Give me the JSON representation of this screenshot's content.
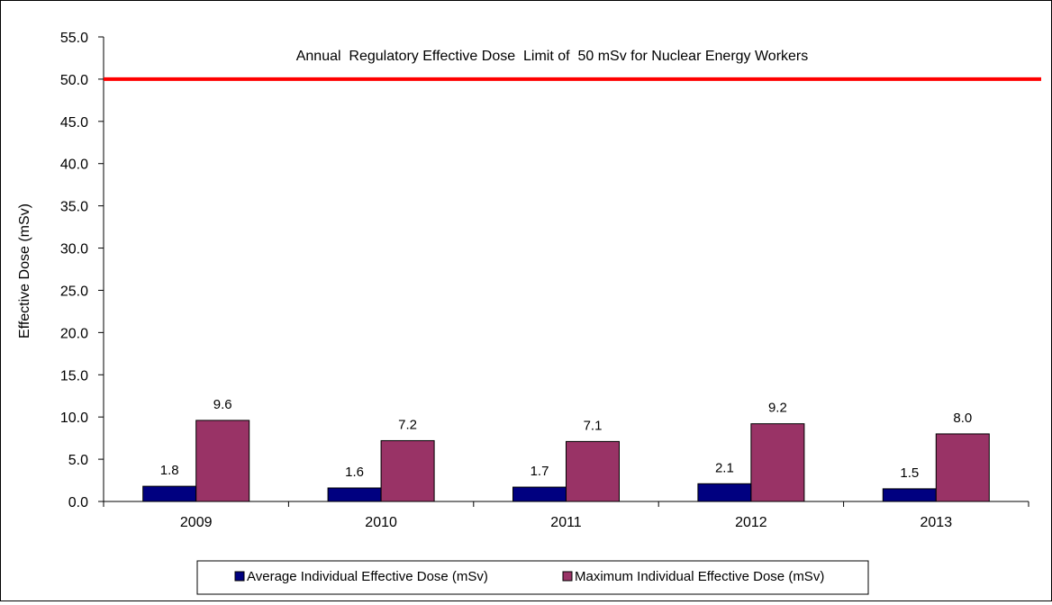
{
  "chart_data": {
    "type": "bar",
    "categories": [
      "2009",
      "2010",
      "2011",
      "2012",
      "2013"
    ],
    "series": [
      {
        "name": "Average Individual Effective Dose (mSv)",
        "values": [
          1.8,
          1.6,
          1.7,
          2.1,
          1.5
        ],
        "color": "#000080"
      },
      {
        "name": "Maximum Individual Effective Dose (mSv)",
        "values": [
          9.6,
          7.2,
          7.1,
          9.2,
          8.0
        ],
        "color": "#993366"
      }
    ],
    "ylabel": "Effective Dose (mSv)",
    "ylim": [
      0,
      55
    ],
    "yticks": [
      "0.0",
      "5.0",
      "10.0",
      "15.0",
      "20.0",
      "25.0",
      "30.0",
      "35.0",
      "40.0",
      "45.0",
      "50.0",
      "55.0"
    ],
    "reference_line": {
      "value": 50,
      "label": "Annual  Regulatory Effective Dose  Limit of  50 mSv for Nuclear Energy Workers",
      "color": "#ff0000"
    },
    "grid": false,
    "legend": "bottom"
  }
}
